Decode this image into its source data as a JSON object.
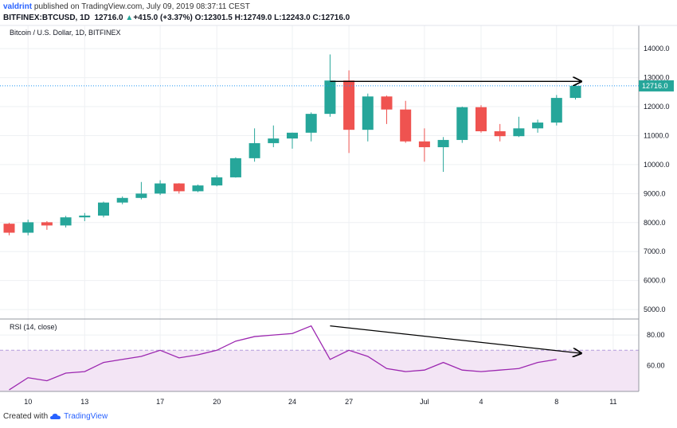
{
  "header": {
    "author": "valdrint",
    "published_text": "published on TradingView.com, July 09, 2019 08:37:11 CEST",
    "symbol": "BITFINEX:BTCUSD, 1D",
    "last": "12716.0",
    "change": "+415.0 (+3.37%)",
    "o_label": "O:",
    "o_value": "12301.5",
    "h_label": "H:",
    "h_value": "12749.0",
    "l_label": "L:",
    "l_value": "12243.0",
    "c_label": "C:",
    "c_value": "12716.0"
  },
  "footer": {
    "created_with": "Created with",
    "brand": "TradingView"
  },
  "colors": {
    "up": "#26a69a",
    "down": "#ef5350",
    "rsi_line": "#9c27b0",
    "rsi_band": "#f3e5f5",
    "price_line": "#2196f3"
  },
  "chart_data": [
    {
      "type": "candlestick",
      "title": "Bitcoin / U.S. Dollar, 1D, BITFINEX",
      "ylim": [
        4700,
        14800
      ],
      "y_ticks": [
        "14000.0",
        "13000.0",
        "12000.0",
        "11000.0",
        "10000.0",
        "9000.0",
        "8000.0",
        "7000.0",
        "6000.0",
        "5000.0"
      ],
      "y_tick_values": [
        14000,
        13000,
        12000,
        11000,
        10000,
        9000,
        8000,
        7000,
        6000,
        5000
      ],
      "last_price_label": "12716.0",
      "last_price": 12716,
      "candles": [
        {
          "date": "Jun 9",
          "o": 7960,
          "h": 7990,
          "l": 7560,
          "c": 7650
        },
        {
          "date": "Jun 10",
          "o": 7650,
          "h": 8100,
          "l": 7560,
          "c": 8010
        },
        {
          "date": "Jun 11",
          "o": 8010,
          "h": 8050,
          "l": 7750,
          "c": 7900
        },
        {
          "date": "Jun 12",
          "o": 7900,
          "h": 8230,
          "l": 7830,
          "c": 8180
        },
        {
          "date": "Jun 13",
          "o": 8180,
          "h": 8330,
          "l": 8050,
          "c": 8240
        },
        {
          "date": "Jun 14",
          "o": 8240,
          "h": 8720,
          "l": 8180,
          "c": 8690
        },
        {
          "date": "Jun 15",
          "o": 8690,
          "h": 8900,
          "l": 8630,
          "c": 8850
        },
        {
          "date": "Jun 16",
          "o": 8850,
          "h": 9400,
          "l": 8800,
          "c": 9000
        },
        {
          "date": "Jun 17",
          "o": 9000,
          "h": 9460,
          "l": 8950,
          "c": 9350
        },
        {
          "date": "Jun 18",
          "o": 9350,
          "h": 9360,
          "l": 9000,
          "c": 9080
        },
        {
          "date": "Jun 19",
          "o": 9080,
          "h": 9310,
          "l": 9050,
          "c": 9280
        },
        {
          "date": "Jun 20",
          "o": 9280,
          "h": 9630,
          "l": 9250,
          "c": 9560
        },
        {
          "date": "Jun 21",
          "o": 9560,
          "h": 10250,
          "l": 9550,
          "c": 10220
        },
        {
          "date": "Jun 22",
          "o": 10220,
          "h": 11250,
          "l": 10100,
          "c": 10740
        },
        {
          "date": "Jun 23",
          "o": 10740,
          "h": 11350,
          "l": 10600,
          "c": 10900
        },
        {
          "date": "Jun 24",
          "o": 10900,
          "h": 11100,
          "l": 10550,
          "c": 11100
        },
        {
          "date": "Jun 25",
          "o": 11100,
          "h": 11800,
          "l": 10800,
          "c": 11750
        },
        {
          "date": "Jun 26",
          "o": 11750,
          "h": 13800,
          "l": 11650,
          "c": 12900
        },
        {
          "date": "Jun 27",
          "o": 12900,
          "h": 13250,
          "l": 10400,
          "c": 11200
        },
        {
          "date": "Jun 28",
          "o": 11200,
          "h": 12450,
          "l": 10800,
          "c": 12350
        },
        {
          "date": "Jun 29",
          "o": 12350,
          "h": 12380,
          "l": 11400,
          "c": 11900
        },
        {
          "date": "Jun 30",
          "o": 11900,
          "h": 12200,
          "l": 10750,
          "c": 10800
        },
        {
          "date": "Jul 1",
          "o": 10800,
          "h": 11250,
          "l": 10100,
          "c": 10600
        },
        {
          "date": "Jul 2",
          "o": 10600,
          "h": 10950,
          "l": 9750,
          "c": 10850
        },
        {
          "date": "Jul 3",
          "o": 10850,
          "h": 12000,
          "l": 10750,
          "c": 11980
        },
        {
          "date": "Jul 4",
          "o": 11980,
          "h": 12050,
          "l": 11100,
          "c": 11150
        },
        {
          "date": "Jul 5",
          "o": 11150,
          "h": 11400,
          "l": 10800,
          "c": 10980
        },
        {
          "date": "Jul 6",
          "o": 10980,
          "h": 11650,
          "l": 10950,
          "c": 11250
        },
        {
          "date": "Jul 7",
          "o": 11250,
          "h": 11550,
          "l": 11100,
          "c": 11450
        },
        {
          "date": "Jul 8",
          "o": 11450,
          "h": 12400,
          "l": 11350,
          "c": 12300
        },
        {
          "date": "Jul 9",
          "o": 12300,
          "h": 12749,
          "l": 12243,
          "c": 12716
        }
      ],
      "x_ticks": [
        {
          "label": "10",
          "index": 1
        },
        {
          "label": "13",
          "index": 4
        },
        {
          "label": "17",
          "index": 8
        },
        {
          "label": "20",
          "index": 11
        },
        {
          "label": "24",
          "index": 15
        },
        {
          "label": "27",
          "index": 18
        },
        {
          "label": "Jul",
          "index": 22
        },
        {
          "label": "4",
          "index": 25
        },
        {
          "label": "8",
          "index": 29
        },
        {
          "label": "11",
          "index": 32
        }
      ],
      "annotation": {
        "type": "arrow",
        "from": {
          "index": 17,
          "value": 12870
        },
        "to": {
          "index": 30.3,
          "value": 12870
        }
      }
    },
    {
      "type": "line",
      "title": "RSI (14, close)",
      "ylim": [
        43,
        90
      ],
      "y_ticks": [
        "80.00",
        "60.00"
      ],
      "y_tick_values": [
        80,
        60
      ],
      "band": [
        30,
        70
      ],
      "values": [
        44,
        52,
        50,
        55,
        56,
        62,
        64,
        66,
        70,
        65,
        67,
        70,
        76,
        79,
        80,
        81,
        86,
        64,
        70,
        66,
        58,
        56,
        57,
        62,
        57,
        56,
        57,
        58,
        62,
        64
      ],
      "annotation": {
        "type": "arrow",
        "from": {
          "index": 17,
          "value": 86
        },
        "to": {
          "index": 30.3,
          "value": 68
        }
      }
    }
  ]
}
